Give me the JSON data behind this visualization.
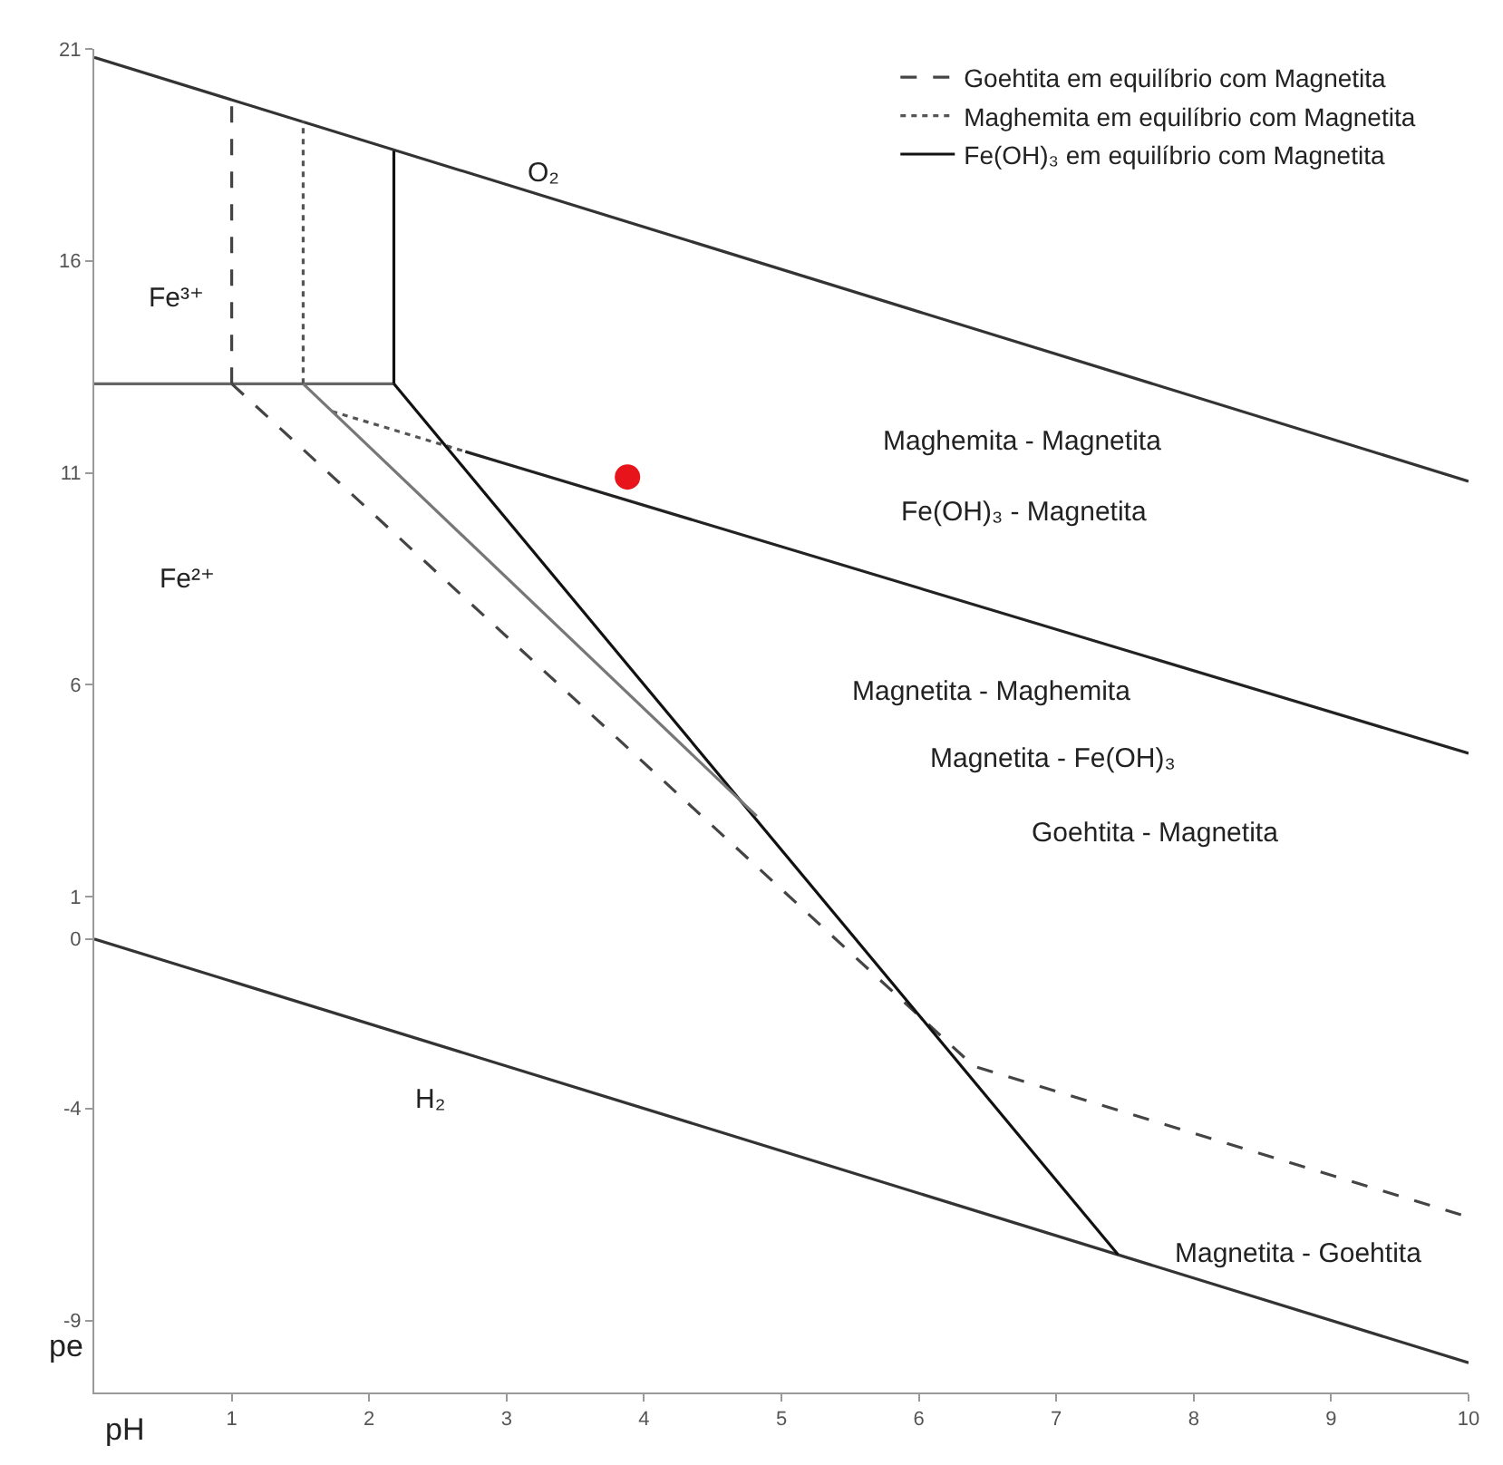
{
  "chart_data": {
    "type": "line",
    "xlabel": "pH",
    "ylabel": "pe",
    "xlim": [
      0,
      10
    ],
    "ylim": [
      -10.7,
      21
    ],
    "xticks": [
      1,
      2,
      3,
      4,
      5,
      6,
      7,
      8,
      9,
      10
    ],
    "yticks": [
      21,
      16,
      11,
      6,
      1,
      0,
      -4,
      -9
    ],
    "grid": false,
    "legend": "top right",
    "series": [
      {
        "color": "#333333",
        "line_style": "solid",
        "x": [
          0,
          10
        ],
        "values": [
          20.8,
          10.8
        ]
      },
      {
        "color": "#333333",
        "line_style": "solid",
        "x": [
          0,
          10
        ],
        "values": [
          0,
          -10
        ]
      },
      {
        "color": "#666666",
        "line_style": "solid",
        "x": [
          0,
          2.18
        ],
        "values": [
          13.1,
          13.1
        ]
      },
      {
        "name": "Goehtita em equilíbrio com Magnetita",
        "color": "#444444",
        "line_style": "dashed",
        "x": [
          1.0,
          1.0,
          null,
          1.0,
          6.4,
          10
        ],
        "values": [
          13.1,
          19.8,
          null,
          13.1,
          -3.0,
          -6.56
        ]
      },
      {
        "name": "Maghemita em equilíbrio com Magnetita",
        "color": "#555555",
        "line_style": "dotted",
        "x": [
          1.52,
          1.52,
          null,
          1.73,
          2.7
        ],
        "values": [
          13.1,
          19.3,
          null,
          12.45,
          11.5
        ]
      },
      {
        "name": "Fe(OH)₃ em equilíbrio com Magnetita",
        "color": "#111111",
        "line_style": "solid",
        "x": [
          2.18,
          2.18,
          null,
          2.18,
          7.45
        ],
        "values": [
          13.1,
          18.6,
          null,
          13.1,
          -7.45
        ]
      },
      {
        "color": "#777777",
        "line_style": "solid",
        "x": [
          1.52,
          4.82
        ],
        "values": [
          13.1,
          2.9
        ]
      },
      {
        "color": "#222222",
        "line_style": "solid",
        "x": [
          2.7,
          10
        ],
        "values": [
          11.5,
          4.38
        ]
      },
      {
        "type": "scatter",
        "marker": "circle",
        "color": "#e8141c",
        "x": [
          3.88
        ],
        "values": [
          10.9
        ]
      }
    ],
    "annotations": [
      "O₂",
      "H₂",
      "Fe³⁺",
      "Fe²⁺",
      "Maghemita - Magnetita",
      "Fe(OH)₃ - Magnetita",
      "Magnetita - Maghemita",
      "Magnetita - Fe(OH)₃",
      "Goehtita - Magnetita",
      "Magnetita - Goehtita"
    ]
  }
}
